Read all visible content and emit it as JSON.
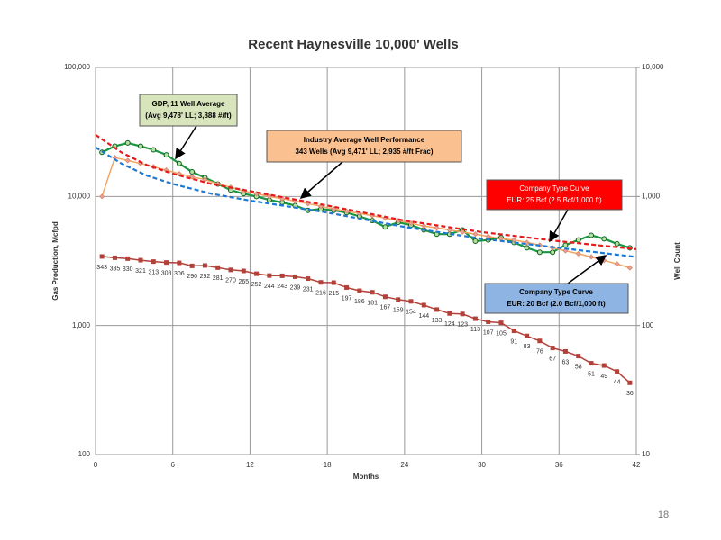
{
  "chart_data": {
    "type": "line",
    "title": "Recent Haynesville 10,000' Wells",
    "x_label": "Months",
    "y_label": "Gas Production, Mcfpd",
    "y2_label": "Well Count",
    "log_y": true,
    "log_y2": true,
    "grid": true,
    "xlim": [
      0,
      42
    ],
    "xticks": [
      0,
      6,
      12,
      18,
      24,
      30,
      36,
      42
    ],
    "ylim": [
      100,
      100000
    ],
    "yticks": [
      {
        "value": 100,
        "label": "100"
      },
      {
        "value": 1000,
        "label": "1,000"
      },
      {
        "value": 10000,
        "label": "10,000"
      },
      {
        "value": 100000,
        "label": "100,000"
      }
    ],
    "y2lim": [
      10,
      10000
    ],
    "y2ticks": [
      {
        "value": 10,
        "label": "10"
      },
      {
        "value": 100,
        "label": "100"
      },
      {
        "value": 1000,
        "label": "1,000"
      },
      {
        "value": 10000,
        "label": "10,000"
      }
    ],
    "series": [
      {
        "color": "#1a9641",
        "marker": "circle",
        "dashed": false,
        "x": [
          0.5,
          1.5,
          2.5,
          3.5,
          4.5,
          5.5,
          6.5,
          7.5,
          8.5,
          9.5,
          10.5,
          11.5,
          12.5,
          13.5,
          14.5,
          15.5,
          16.5,
          17.5,
          18.5,
          19.5,
          20.5,
          21.5,
          22.5,
          23.5,
          24.5,
          25.5,
          26.5,
          27.5,
          28.5,
          29.5,
          30.5,
          31.5,
          32.5,
          33.5,
          34.5,
          35.5,
          36.5,
          37.5,
          38.5,
          39.5,
          40.5,
          41.5
        ],
        "values": [
          22000,
          24500,
          26000,
          24500,
          23000,
          21000,
          18000,
          15500,
          14000,
          12500,
          11200,
          10500,
          10000,
          9400,
          9000,
          8500,
          7800,
          8000,
          7800,
          7500,
          7000,
          6500,
          5800,
          6300,
          6000,
          5500,
          5100,
          5100,
          5500,
          4500,
          4600,
          4800,
          4400,
          4000,
          3700,
          3700,
          4200,
          4600,
          5000,
          4700,
          4300,
          4000
        ]
      },
      {
        "color": "#f4a460",
        "marker": "diamond",
        "dashed": false,
        "x": [
          0.5,
          1.5,
          2.5,
          3.5,
          4.5,
          5.5,
          6.5,
          7.5,
          8.5,
          9.5,
          10.5,
          11.5,
          12.5,
          13.5,
          14.5,
          15.5,
          16.5,
          17.5,
          18.5,
          19.5,
          20.5,
          21.5,
          22.5,
          23.5,
          24.5,
          25.5,
          26.5,
          27.5,
          28.5,
          29.5,
          30.5,
          31.5,
          32.5,
          33.5,
          34.5,
          35.5,
          36.5,
          37.5,
          38.5,
          39.5,
          40.5,
          41.5
        ],
        "values": [
          10000,
          20000,
          19000,
          18000,
          17000,
          16000,
          15000,
          14200,
          13500,
          12500,
          11800,
          11000,
          10500,
          10000,
          9600,
          9200,
          8800,
          8400,
          8000,
          7700,
          7400,
          7100,
          6800,
          6500,
          6200,
          5900,
          5700,
          5500,
          5300,
          5100,
          4900,
          4700,
          4600,
          4400,
          4200,
          4000,
          3800,
          3600,
          3400,
          3200,
          3000,
          2800
        ]
      },
      {
        "color": "#e41a1c",
        "marker": "none",
        "dashed": true,
        "x": [
          0,
          2,
          4,
          6,
          9,
          12,
          18,
          24,
          30,
          36,
          42
        ],
        "values": [
          30000,
          22000,
          17500,
          15000,
          12500,
          11000,
          8500,
          6500,
          5300,
          4500,
          3900
        ]
      },
      {
        "color": "#1f78d4",
        "marker": "none",
        "dashed": true,
        "x": [
          0,
          2,
          4,
          6,
          9,
          12,
          18,
          24,
          30,
          36,
          42
        ],
        "values": [
          24000,
          18000,
          14500,
          12500,
          10500,
          9300,
          7500,
          5800,
          4700,
          4000,
          3400
        ]
      },
      {
        "color": "#b2413a",
        "marker": "square",
        "dashed": false,
        "axis": "y2",
        "data_labels": true,
        "x": [
          0.5,
          1.5,
          2.5,
          3.5,
          4.5,
          5.5,
          6.5,
          7.5,
          8.5,
          9.5,
          10.5,
          11.5,
          12.5,
          13.5,
          14.5,
          15.5,
          16.5,
          17.5,
          18.5,
          19.5,
          20.5,
          21.5,
          22.5,
          23.5,
          24.5,
          25.5,
          26.5,
          27.5,
          28.5,
          29.5,
          30.5,
          31.5,
          32.5,
          33.5,
          34.5,
          35.5,
          36.5,
          37.5,
          38.5,
          39.5,
          40.5,
          41.5
        ],
        "values": [
          343,
          335,
          330,
          321,
          313,
          308,
          306,
          290,
          292,
          281,
          270,
          265,
          252,
          244,
          243,
          239,
          231,
          216,
          215,
          197,
          186,
          181,
          167,
          159,
          154,
          144,
          133,
          124,
          123,
          113,
          107,
          105,
          91,
          83,
          76,
          67,
          63,
          58,
          51,
          49,
          44,
          36
        ]
      }
    ],
    "annotations": [
      {
        "lines": [
          "GDP, 11 Well Average",
          "(Avg 9,478' LL; 3,888 #/ft)"
        ]
      },
      {
        "lines": [
          "Industry Average Well Performance",
          "343 Wells (Avg 9,471' LL; 2,935 #/ft Frac)"
        ]
      },
      {
        "lines": [
          "Company Type Curve",
          "EUR: 25 Bcf (2.5 Bcf/1,000 ft)"
        ]
      },
      {
        "lines": [
          "Company Type Curve",
          "EUR: 20 Bcf (2.0 Bcf/1,000 ft)"
        ]
      }
    ]
  },
  "page_number": "18"
}
